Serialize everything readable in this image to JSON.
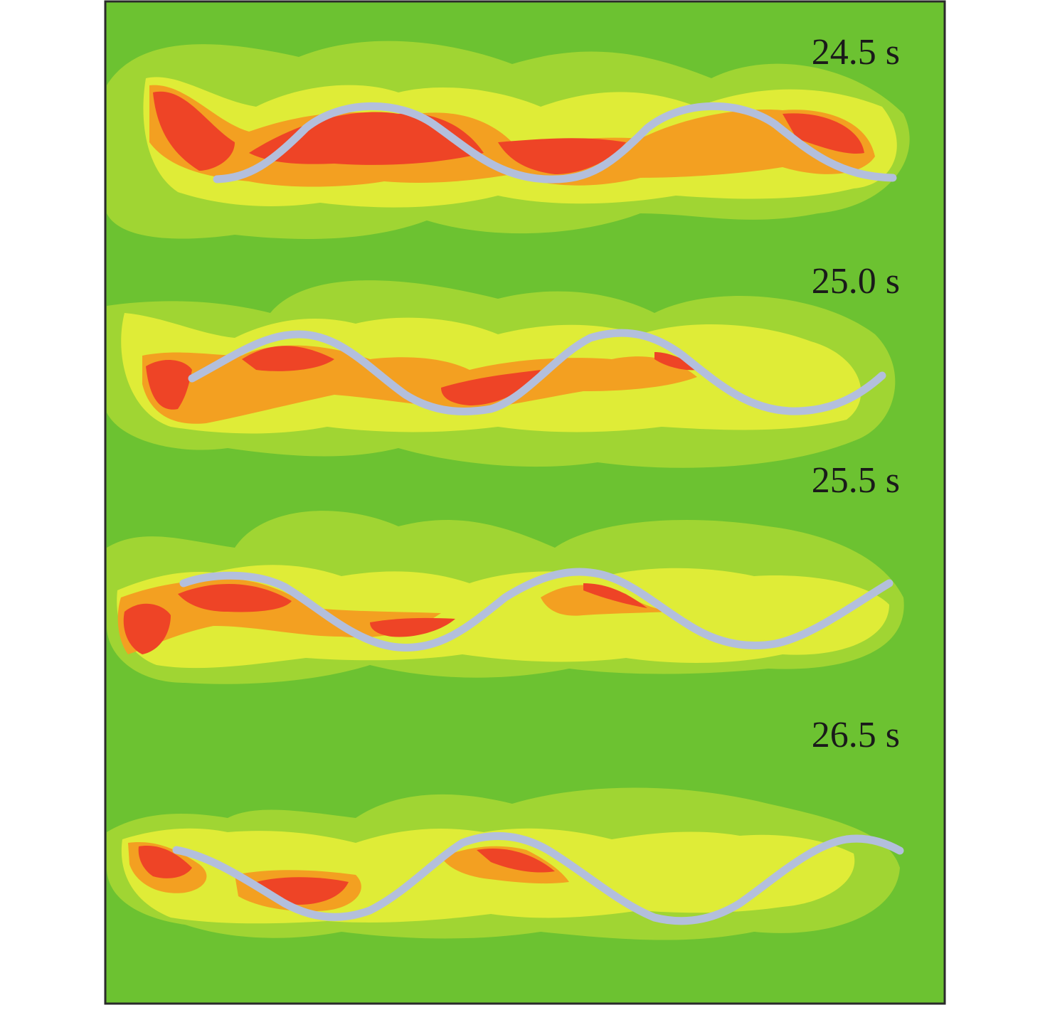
{
  "colors": {
    "background": "#6cc231",
    "band_light_green": "#a0d533",
    "band_yellow": "#dfec37",
    "band_orange": "#f3a021",
    "band_red": "#ee4426",
    "body_stroke": "#b3bfdc",
    "frame": "#2a2a2a"
  },
  "frames": [
    {
      "time_label": "24.5 s"
    },
    {
      "time_label": "25.0 s"
    },
    {
      "time_label": "25.5 s"
    },
    {
      "time_label": "26.5 s"
    }
  ]
}
